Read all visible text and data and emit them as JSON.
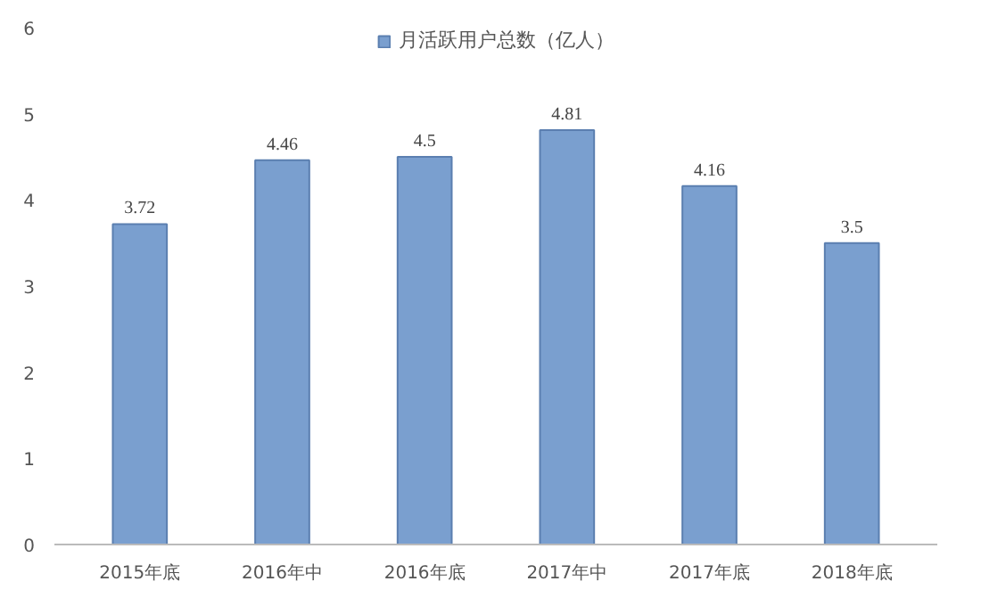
{
  "chart_data": {
    "type": "bar",
    "categories": [
      "2015年底",
      "2016年中",
      "2016年底",
      "2017年中",
      "2017年底",
      "2018年底"
    ],
    "series": [
      {
        "name": "月活跃用户总数（亿人）",
        "color": "#7a9fcf",
        "values": [
          3.72,
          4.46,
          4.5,
          4.81,
          4.16,
          3.5
        ]
      }
    ],
    "ylim": [
      0,
      6
    ],
    "yticks": [
      0,
      1,
      2,
      3,
      4,
      5,
      6
    ],
    "data_labels": true,
    "legend": "top",
    "grid": false
  }
}
